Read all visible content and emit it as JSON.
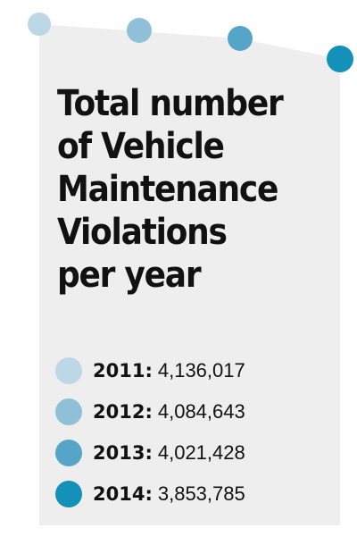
{
  "chart_data": {
    "type": "scatter",
    "title": [
      "Total number",
      "of Vehicle",
      "Maintenance",
      "Violations",
      "per year"
    ],
    "x": [
      2011,
      2012,
      2013,
      2014
    ],
    "y": [
      4136017,
      4084643,
      4021428,
      3853785
    ],
    "legend": [
      {
        "year": "2011:",
        "value": "4,136,017",
        "color": "#bcd7e6"
      },
      {
        "year": "2012:",
        "value": "4,084,643",
        "color": "#8fc0d8"
      },
      {
        "year": "2013:",
        "value": "4,021,428",
        "color": "#55a5c8"
      },
      {
        "year": "2014:",
        "value": "3,853,785",
        "color": "#1391b8"
      }
    ],
    "legend_placement": "bottom-left",
    "grid": false,
    "panel_color": "#eeeeee"
  }
}
